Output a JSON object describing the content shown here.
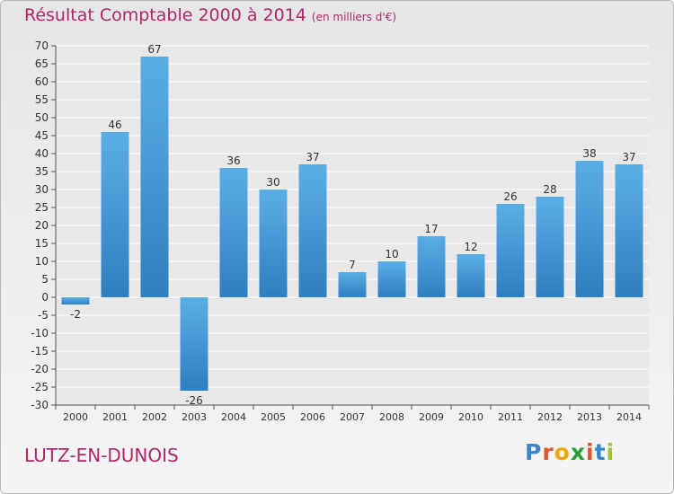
{
  "page": {
    "title": "Résultat Comptable 2000 à 2014",
    "unit": "(en milliers d'€)",
    "commune": "LUTZ-EN-DUNOIS",
    "logo": "Proxiti"
  },
  "colors": {
    "title": "#b0276b",
    "bar_light": "#5aaee6",
    "bar_dark": "#2e7fbf",
    "grid": "#ffffff",
    "text": "#333333",
    "logo_letters": [
      "#3a86c8",
      "#e0562b",
      "#f0a800",
      "#2a9d3c",
      "#e0562b",
      "#3a86c8",
      "#9fc33a"
    ]
  },
  "chart_data": {
    "type": "bar",
    "title": "Résultat Comptable 2000 à 2014",
    "subtitle": "(en milliers d'€)",
    "xlabel": "",
    "ylabel": "",
    "categories": [
      "2000",
      "2001",
      "2002",
      "2003",
      "2004",
      "2005",
      "2006",
      "2007",
      "2008",
      "2009",
      "2010",
      "2011",
      "2012",
      "2013",
      "2014"
    ],
    "values": [
      -2,
      46,
      67,
      -26,
      36,
      30,
      37,
      7,
      10,
      17,
      12,
      26,
      28,
      38,
      37
    ],
    "data_labels": [
      "-2",
      "46",
      "67",
      "-26",
      "36",
      "30",
      "37",
      "7",
      "10",
      "17",
      "12",
      "26",
      "28",
      "38",
      "37"
    ],
    "ylim": [
      -30,
      70
    ],
    "yticks": [
      70,
      65,
      60,
      55,
      50,
      45,
      40,
      35,
      30,
      25,
      20,
      15,
      10,
      5,
      0,
      -5,
      -10,
      -15,
      -20,
      -25,
      -30
    ],
    "ytick_labels": [
      "70",
      "65",
      "60",
      "55",
      "50",
      "45",
      "40",
      "35",
      "30",
      "25",
      "20",
      "15",
      "10",
      "5",
      "0",
      "-5",
      "-10",
      "-15",
      "-20",
      "-25",
      "-30"
    ],
    "grid": true,
    "legend": "none"
  }
}
